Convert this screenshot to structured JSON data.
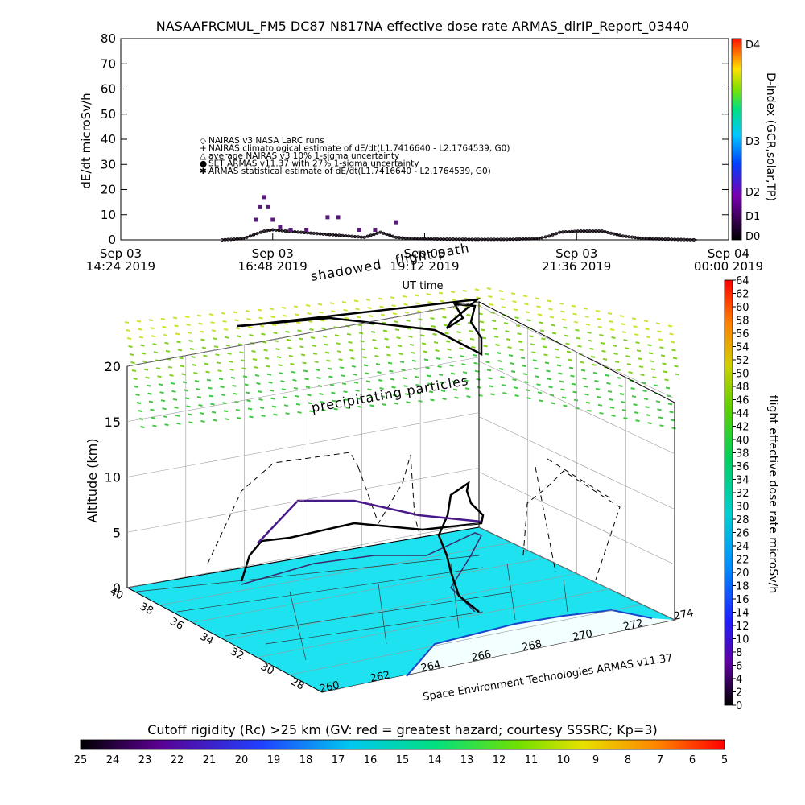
{
  "title": "NASAAFRCMUL_FM5 DC87 N817NA effective dose rate ARMAS_dirIP_Report_03440",
  "colors": {
    "ground": "#1ee2f0",
    "nairas_curve": "#3a2a3a",
    "armas_marker": "#5a1a7a",
    "grid": "#999999"
  },
  "chart_data": [
    {
      "type": "scatter",
      "title": "NASAAFRCMUL_FM5 DC87 N817NA effective dose rate ARMAS_dirIP_Report_03440",
      "xlabel": "UT time",
      "ylabel": "dE/dt microSv/h",
      "ylim": [
        0,
        80
      ],
      "yticks": [
        "0",
        "10",
        "20",
        "30",
        "40",
        "50",
        "60",
        "70",
        "80"
      ],
      "xticks": [
        {
          "line1": "Sep 03",
          "line2": "14:24 2019"
        },
        {
          "line1": "Sep 03",
          "line2": "16:48 2019"
        },
        {
          "line1": "Sep 03",
          "line2": "19:12 2019"
        },
        {
          "line1": "Sep 03",
          "line2": "21:36 2019"
        },
        {
          "line1": "Sep 04",
          "line2": "00:00 2019"
        }
      ],
      "right_axis_label": "D-index (GCR,solar,TP)",
      "right_axis_ticks": [
        "D0",
        "D1",
        "D2",
        "D3",
        "D4"
      ],
      "legend": [
        {
          "symbol": "◇",
          "text": "NAIRAS v3 NASA LaRC runs"
        },
        {
          "symbol": "+",
          "text": "NAIRAS climatological estimate of dE/dt(L1.7416640 - L2.1764539, G0)"
        },
        {
          "symbol": "△",
          "text": "average NAIRAS v3 10% 1-sigma uncertainty"
        },
        {
          "symbol": "●",
          "text": "SET ARMAS v11.37 with 27% 1-sigma uncertainty"
        },
        {
          "symbol": "✱",
          "text": "ARMAS statistical estimate of dE/dt(L1.7416640 - L2.1764539, G0)"
        }
      ],
      "series": [
        {
          "name": "NAIRAS v3 NASA LaRC runs",
          "x": [
            "16:00",
            "16:20",
            "16:30",
            "16:40",
            "16:48",
            "17:00",
            "17:15",
            "17:30",
            "17:45",
            "18:00",
            "18:15",
            "18:30",
            "18:45",
            "19:00",
            "19:30",
            "20:00",
            "20:30",
            "21:00",
            "21:10",
            "21:20",
            "21:40",
            "22:00",
            "22:20",
            "22:40",
            "23:00",
            "23:30"
          ],
          "y": [
            0,
            0.5,
            2,
            3.5,
            4,
            3.5,
            3,
            2.5,
            2,
            1.5,
            1,
            3,
            1,
            0.5,
            0.3,
            0.2,
            0.2,
            0.5,
            1.5,
            3,
            3.5,
            3.5,
            1.5,
            0.5,
            0.3,
            0
          ]
        },
        {
          "name": "SET ARMAS v11.37 with 27% 1-sigma uncertainty",
          "x": [
            "16:32",
            "16:36",
            "16:40",
            "16:44",
            "16:48",
            "16:55",
            "17:05",
            "17:20",
            "17:40",
            "17:50",
            "18:10",
            "18:25",
            "18:45"
          ],
          "y": [
            8,
            13,
            17,
            13,
            8,
            5,
            4,
            4,
            9,
            9,
            4,
            4,
            7
          ]
        }
      ]
    },
    {
      "type": "scatter",
      "title": "flight path",
      "zlabel": "Altitude (km)",
      "zlim": [
        0,
        20
      ],
      "zticks": [
        "0",
        "5",
        "10",
        "15",
        "20"
      ],
      "lat_ticks": [
        "28",
        "30",
        "32",
        "34",
        "36",
        "38",
        "40"
      ],
      "lon_ticks": [
        "260",
        "262",
        "264",
        "266",
        "268",
        "270",
        "272",
        "274"
      ],
      "annotations": [
        "shadowed",
        "flight path",
        "precipitating particles",
        "Space Environment Technologies ARMAS v11.37"
      ],
      "colorbar_right": {
        "label": "flight effective dose rate microSv/h",
        "ticks": [
          "0",
          "2",
          "4",
          "6",
          "8",
          "10",
          "12",
          "14",
          "16",
          "18",
          "20",
          "22",
          "24",
          "26",
          "28",
          "30",
          "32",
          "34",
          "36",
          "38",
          "40",
          "42",
          "44",
          "46",
          "48",
          "50",
          "52",
          "54",
          "56",
          "58",
          "60",
          "62",
          "64"
        ]
      },
      "colorbar_bottom": {
        "label": "Cutoff rigidity (Rc) >25 km (GV: red = greatest hazard; courtesy SSSRC; Kp=3)",
        "ticks": [
          "25",
          "24",
          "23",
          "22",
          "21",
          "20",
          "19",
          "18",
          "17",
          "16",
          "15",
          "14",
          "13",
          "12",
          "11",
          "10",
          "9",
          "8",
          "7",
          "6",
          "5"
        ]
      }
    }
  ]
}
